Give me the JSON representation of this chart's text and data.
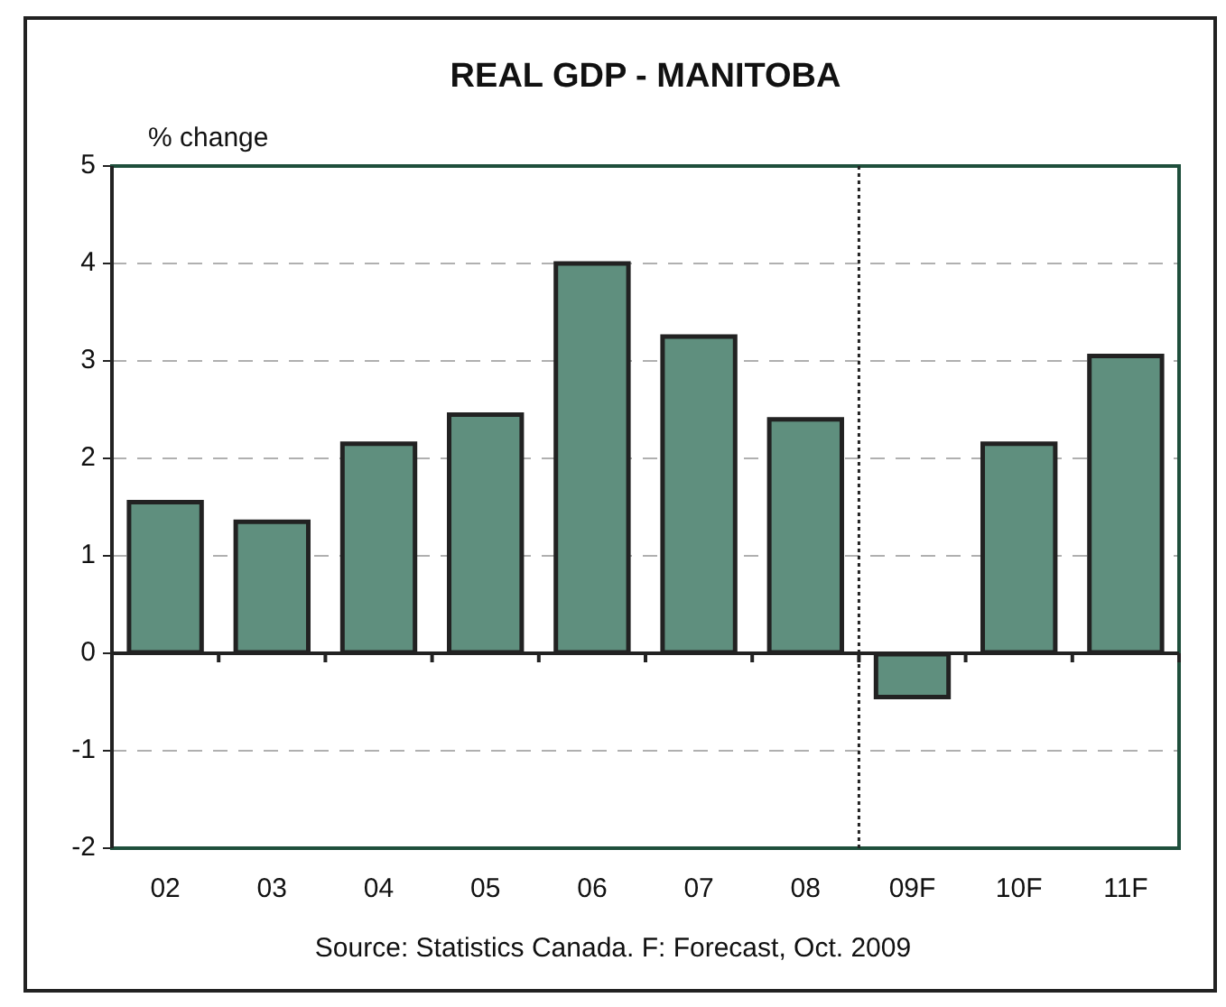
{
  "chart_data": {
    "type": "bar",
    "title": "REAL GDP - MANITOBA",
    "ylabel": "% change",
    "categories": [
      "02",
      "03",
      "04",
      "05",
      "06",
      "07",
      "08",
      "09F",
      "10F",
      "11F"
    ],
    "values": [
      1.55,
      1.35,
      2.15,
      2.45,
      4.0,
      3.25,
      2.4,
      -0.45,
      2.15,
      3.05
    ],
    "color": "#5f8f7e",
    "ylim": [
      -2,
      5
    ],
    "yticks": [
      -2,
      -1,
      0,
      1,
      2,
      3,
      4,
      5
    ],
    "grid": "y",
    "legend": false,
    "ref_lines": [
      {
        "axis": "x",
        "value": "09F",
        "line_style": "dotted",
        "color": "#222222"
      }
    ],
    "annotations": [
      "Source: Statistics Canada. F: Forecast, Oct. 2009"
    ]
  }
}
